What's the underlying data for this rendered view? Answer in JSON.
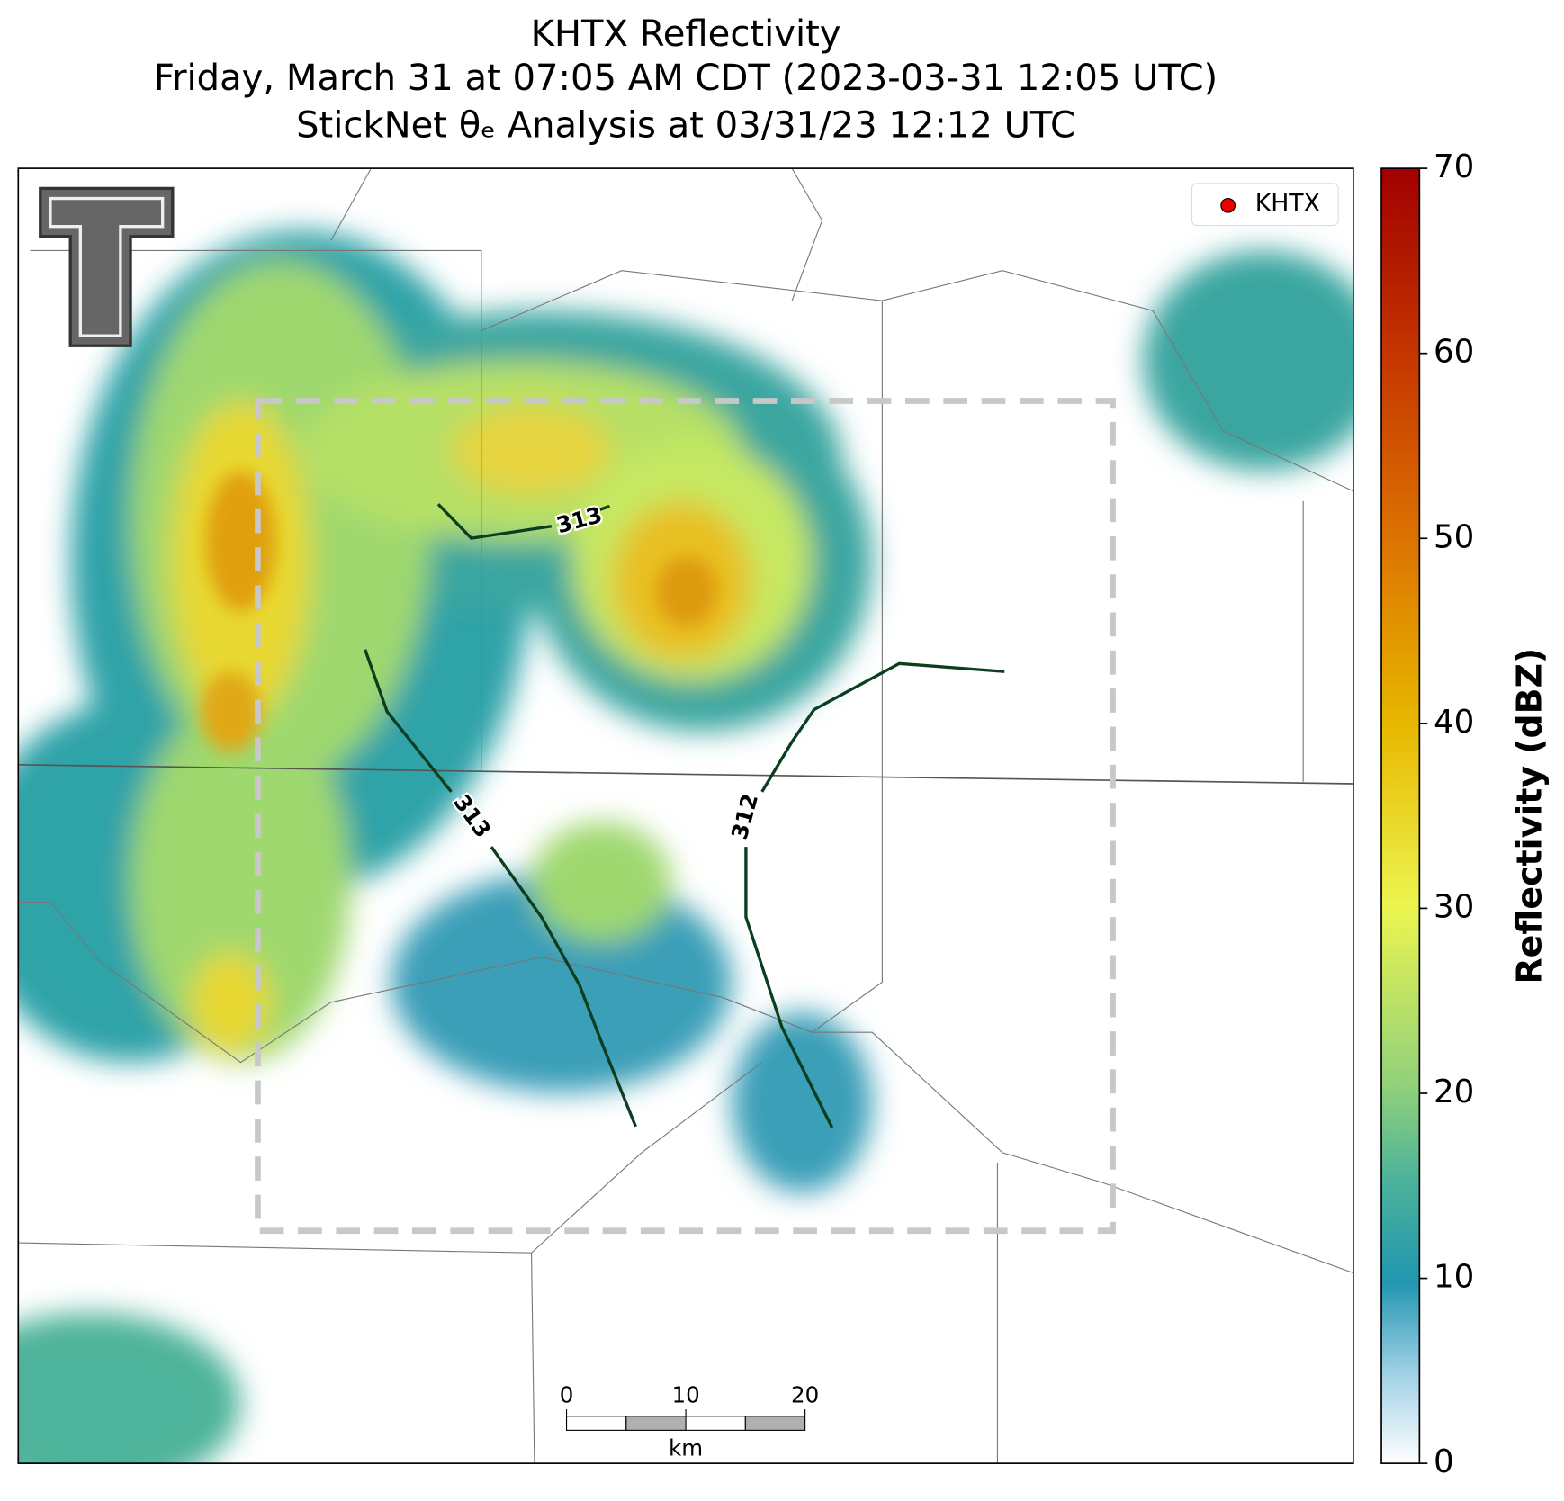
{
  "title": [
    "KHTX Reflectivity",
    "Friday, March 31 at 07:05 AM CDT (2023-03-31 12:05 UTC)",
    "StickNet θₑ Analysis at 03/31/23 12:12 UTC"
  ],
  "colorbar": {
    "label": "Reflectivity (dBZ)",
    "lim": [
      0,
      70
    ],
    "ticks": [
      0,
      10,
      20,
      30,
      40,
      50,
      60,
      70
    ]
  },
  "legend": {
    "label": "KHTX"
  },
  "scale_bar": {
    "lim": [
      0,
      20
    ],
    "ticks": [
      0,
      10,
      20
    ],
    "unit": "km"
  },
  "contours": [
    {
      "label": "313"
    },
    {
      "label": "313"
    },
    {
      "label": "312"
    }
  ]
}
